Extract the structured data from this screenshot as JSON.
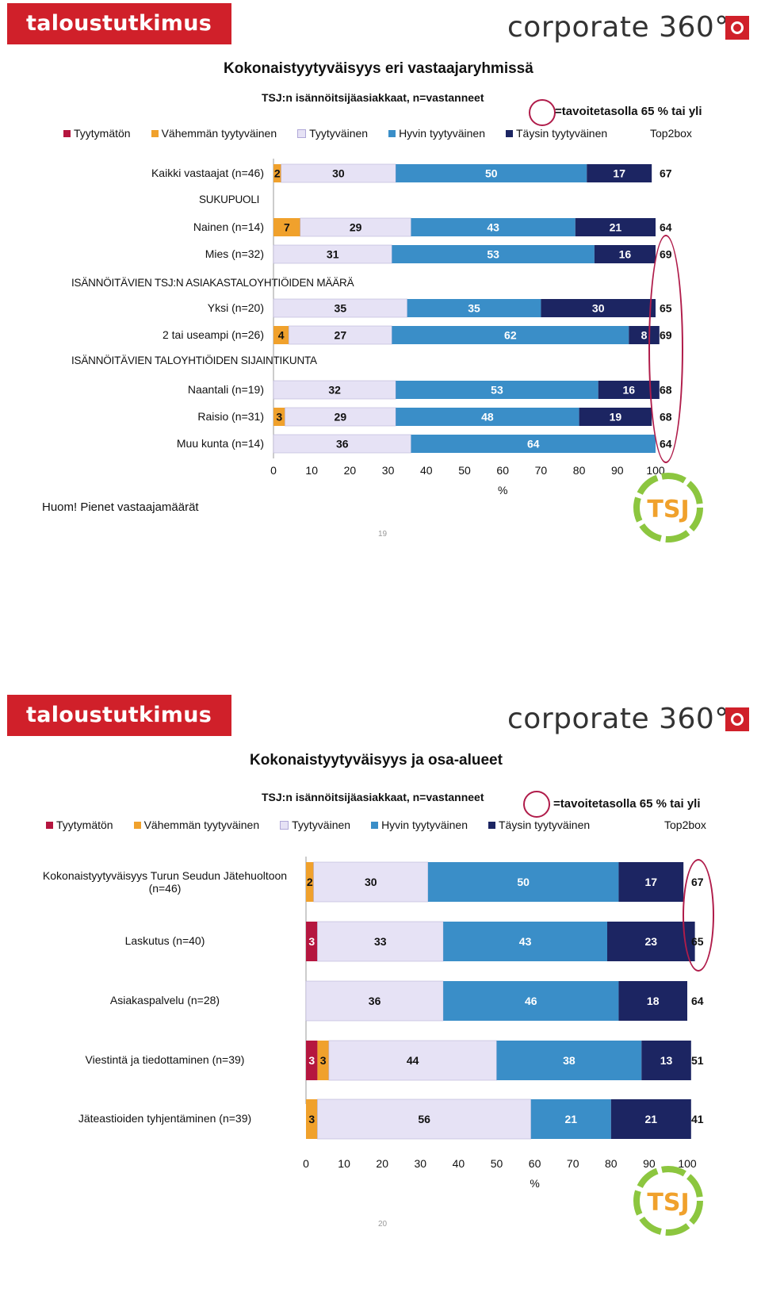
{
  "brand": {
    "left_logo": "taloustutkimus oy",
    "right_logo": "corporate 360°",
    "tsj_logo": "TSJ"
  },
  "colors": {
    "tyytymaton": "#b5163f",
    "vahemman": "#f0a12c",
    "tyytyvainen": "#e6e2f5",
    "hyvin": "#3a8ec8",
    "taysin": "#1c2562",
    "target_circle": "#b01c4a"
  },
  "slide1": {
    "title": "Kokonaistyytyväisyys  eri vastaajaryhmissä",
    "subtitle": "TSJ:n isännöitsijäasiakkaat, n=vastanneet",
    "target_note": "=tavoitetasolla 65 % tai yli",
    "note": "Huom! Pienet vastaajamäärät",
    "page_number": "19",
    "sections": [
      "SUKUPUOLI",
      "ISÄNNÖITÄVIEN  TSJ:N  ASIAKASTALOYHTIÖIDEN  MÄÄRÄ",
      "ISÄNNÖITÄVIEN  TALOYHTIÖIDEN  SIJAINTIKUNTA"
    ]
  },
  "slide2": {
    "title": "Kokonaistyytyväisyys  ja osa-alueet",
    "subtitle": "TSJ:n isännöitsijäasiakkaat, n=vastanneet",
    "target_note": "=tavoitetasolla 65 % tai yli",
    "page_number": "20"
  },
  "chart_data": [
    {
      "type": "bar",
      "orientation": "horizontal-stacked",
      "title": "Kokonaistyytyväisyys  eri vastaajaryhmissä",
      "legend": [
        "Tyytymätön",
        "Vähemmän tyytyväinen",
        "Tyytyväinen",
        "Hyvin tyytyväinen",
        "Täysin tyytyväinen"
      ],
      "top2_label": "Top2box",
      "xlabel": "%",
      "xlim": [
        0,
        100
      ],
      "xticks": [
        0,
        10,
        20,
        30,
        40,
        50,
        60,
        70,
        80,
        90,
        100
      ],
      "rows": [
        {
          "label": "Kaikki vastaajat (n=46)",
          "values": [
            0,
            2,
            30,
            50,
            17
          ],
          "top2": 67,
          "section": null
        },
        {
          "label": "Nainen (n=14)",
          "values": [
            0,
            7,
            29,
            43,
            21
          ],
          "top2": 64,
          "section": "SUKUPUOLI"
        },
        {
          "label": "Mies (n=32)",
          "values": [
            0,
            0,
            31,
            53,
            16
          ],
          "top2": 69,
          "section": "SUKUPUOLI"
        },
        {
          "label": "Yksi (n=20)",
          "values": [
            0,
            0,
            35,
            35,
            30
          ],
          "top2": 65,
          "section": "ISÄNNÖITÄVIEN  TSJ:N  ASIAKASTALOYHTIÖIDEN  MÄÄRÄ"
        },
        {
          "label": "2 tai useampi (n=26)",
          "values": [
            0,
            4,
            27,
            62,
            8
          ],
          "top2": 69,
          "section": "ISÄNNÖITÄVIEN  TSJ:N  ASIAKASTALOYHTIÖIDEN  MÄÄRÄ"
        },
        {
          "label": "Naantali (n=19)",
          "values": [
            0,
            0,
            32,
            53,
            16
          ],
          "top2": 68,
          "section": "ISÄNNÖITÄVIEN  TALOYHTIÖIDEN  SIJAINTIKUNTA"
        },
        {
          "label": "Raisio (n=31)",
          "values": [
            0,
            3,
            29,
            48,
            19
          ],
          "top2": 68,
          "section": "ISÄNNÖITÄVIEN  TALOYHTIÖIDEN  SIJAINTIKUNTA"
        },
        {
          "label": "Muu kunta (n=14)",
          "values": [
            0,
            0,
            36,
            64,
            0
          ],
          "top2": 64,
          "section": "ISÄNNÖITÄVIEN  TALOYHTIÖIDEN  SIJAINTIKUNTA"
        }
      ]
    },
    {
      "type": "bar",
      "orientation": "horizontal-stacked",
      "title": "Kokonaistyytyväisyys  ja osa-alueet",
      "legend": [
        "Tyytymätön",
        "Vähemmän tyytyväinen",
        "Tyytyväinen",
        "Hyvin tyytyväinen",
        "Täysin tyytyväinen"
      ],
      "top2_label": "Top2box",
      "xlabel": "%",
      "xlim": [
        0,
        100
      ],
      "xticks": [
        0,
        10,
        20,
        30,
        40,
        50,
        60,
        70,
        80,
        90,
        100
      ],
      "rows": [
        {
          "label": "Kokonaistyytyväisyys Turun Seudun Jätehuoltoon (n=46)",
          "values": [
            0,
            2,
            30,
            50,
            17
          ],
          "top2": 67
        },
        {
          "label": "Laskutus (n=40)",
          "values": [
            3,
            0,
            33,
            43,
            23
          ],
          "top2": 65
        },
        {
          "label": "Asiakaspalvelu (n=28)",
          "values": [
            0,
            0,
            36,
            46,
            18
          ],
          "top2": 64
        },
        {
          "label": "Viestintä ja tiedottaminen (n=39)",
          "values": [
            3,
            3,
            44,
            38,
            13
          ],
          "top2": 51
        },
        {
          "label": "Jäteastioiden tyhjentäminen (n=39)",
          "values": [
            0,
            3,
            56,
            21,
            21
          ],
          "top2": 41
        }
      ]
    }
  ]
}
